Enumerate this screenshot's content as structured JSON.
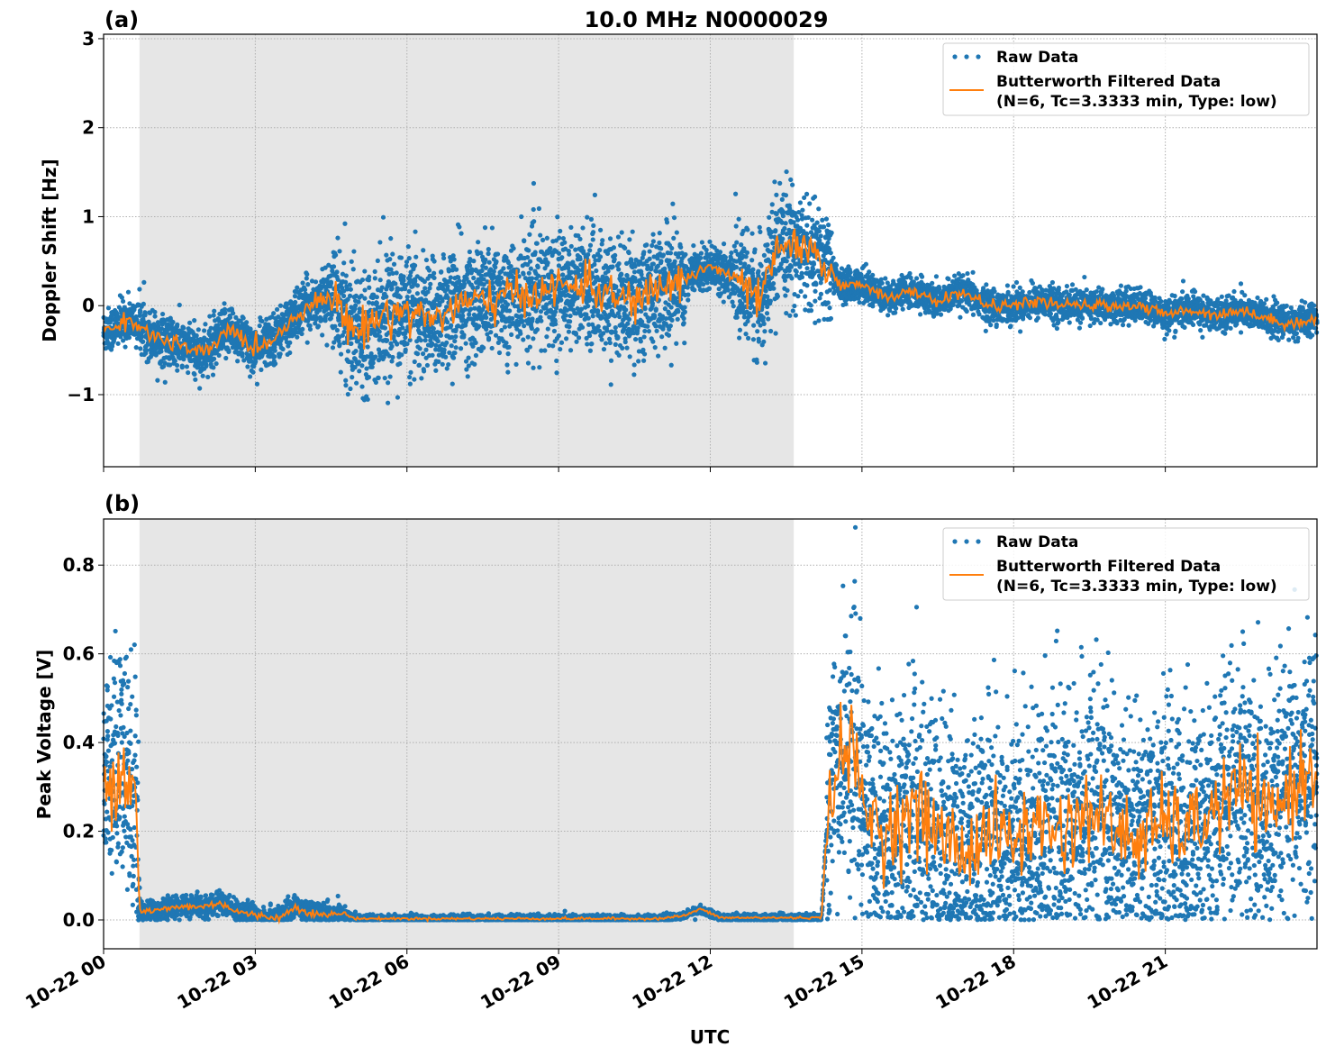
{
  "chart_data": {
    "title": "10.0 MHz N0000029",
    "xlabel": "UTC",
    "x_unit": "hours since 10-22 00:00",
    "xlim": [
      0,
      24
    ],
    "xticks": [
      0,
      3,
      6,
      9,
      12,
      15,
      18,
      21
    ],
    "xtick_labels": [
      "10-22 00",
      "10-22 03",
      "10-22 06",
      "10-22 09",
      "10-22 12",
      "10-22 15",
      "10-22 18",
      "10-22 21"
    ],
    "shaded_interval": [
      0.71,
      13.65
    ],
    "grid": true,
    "colors": {
      "raw": "#1f77b4",
      "filtered": "#ff7f0e",
      "shade": "#e6e6e6"
    },
    "panels": [
      {
        "type": "scatter+line",
        "label": "(a)",
        "ylabel": "Doppler Shift [Hz]",
        "ylim": [
          -1.81,
          3.05
        ],
        "yticks": [
          -1,
          0,
          1,
          2,
          3
        ],
        "ytick_labels": [
          "−1",
          "0",
          "1",
          "2",
          "3"
        ],
        "legend": {
          "position": "top-right",
          "entries": [
            "Raw Data",
            "Butterworth Filtered Data",
            "(N=6, Tc=3.3333 min, Type: low)"
          ]
        },
        "filtered": {
          "x": [
            0,
            0.5,
            1,
            1.5,
            2,
            2.5,
            3,
            3.5,
            4,
            4.5,
            5,
            5.5,
            6,
            6.5,
            7,
            7.5,
            8,
            8.5,
            9,
            9.5,
            10,
            10.5,
            11,
            11.5,
            12,
            12.5,
            13,
            13.3,
            13.6,
            14,
            14.35,
            14.6,
            15,
            15.5,
            16,
            16.5,
            17,
            17.5,
            18,
            18.5,
            19,
            19.5,
            20,
            20.5,
            21,
            21.5,
            22,
            22.5,
            23,
            23.5,
            24
          ],
          "y": [
            -0.3,
            -0.15,
            -0.35,
            -0.45,
            -0.55,
            -0.25,
            -0.5,
            -0.3,
            0.0,
            0.1,
            -0.3,
            -0.1,
            -0.05,
            -0.15,
            0.0,
            0.05,
            0.1,
            0.15,
            0.2,
            0.25,
            0.1,
            0.05,
            0.2,
            0.3,
            0.45,
            0.3,
            0.05,
            0.6,
            0.7,
            0.55,
            0.45,
            0.2,
            0.25,
            0.1,
            0.15,
            0.05,
            0.15,
            0.0,
            0.0,
            0.05,
            0.0,
            0.0,
            0.0,
            0.0,
            -0.1,
            -0.05,
            -0.1,
            -0.05,
            -0.15,
            -0.2,
            -0.15
          ]
        },
        "raw_spread": [
          [
            0,
            0.7,
            0.12
          ],
          [
            0.7,
            4.5,
            0.14
          ],
          [
            4.5,
            11.5,
            0.32
          ],
          [
            11.5,
            12.5,
            0.12
          ],
          [
            12.5,
            14.4,
            0.3
          ],
          [
            14.4,
            24,
            0.09
          ]
        ]
      },
      {
        "type": "scatter+line",
        "label": "(b)",
        "ylabel": "Peak Voltage [V]",
        "ylim": [
          -0.065,
          0.904
        ],
        "yticks": [
          0.0,
          0.2,
          0.4,
          0.6,
          0.8
        ],
        "ytick_labels": [
          "0.0",
          "0.2",
          "0.4",
          "0.6",
          "0.8"
        ],
        "legend": {
          "position": "top-right",
          "entries": [
            "Raw Data",
            "Butterworth Filtered Data",
            "(N=6, Tc=3.3333 min, Type: low)"
          ]
        },
        "filtered": {
          "x": [
            0,
            0.3,
            0.5,
            0.65,
            0.72,
            1,
            1.5,
            2,
            2.3,
            2.6,
            3,
            3.5,
            3.8,
            4,
            4.3,
            4.7,
            5,
            8,
            11,
            11.5,
            11.8,
            12.2,
            14.2,
            14.35,
            14.5,
            14.8,
            15,
            15.5,
            16,
            16.5,
            17,
            17.5,
            18,
            18.5,
            19,
            19.5,
            20,
            20.5,
            21,
            21.5,
            22,
            22.5,
            23,
            23.5,
            24
          ],
          "y": [
            0.3,
            0.35,
            0.32,
            0.3,
            0.02,
            0.02,
            0.03,
            0.03,
            0.04,
            0.02,
            0.01,
            0.005,
            0.03,
            0.02,
            0.01,
            0.015,
            0.003,
            0.003,
            0.003,
            0.01,
            0.025,
            0.005,
            0.005,
            0.3,
            0.35,
            0.4,
            0.25,
            0.2,
            0.25,
            0.2,
            0.15,
            0.2,
            0.18,
            0.22,
            0.2,
            0.25,
            0.2,
            0.18,
            0.22,
            0.2,
            0.25,
            0.3,
            0.22,
            0.3,
            0.35
          ]
        },
        "raw_spread": [
          [
            0,
            0.7,
            0.14
          ],
          [
            0.7,
            4.8,
            0.012
          ],
          [
            4.8,
            14.3,
            0.004
          ],
          [
            14.3,
            24,
            0.14
          ]
        ]
      }
    ]
  }
}
